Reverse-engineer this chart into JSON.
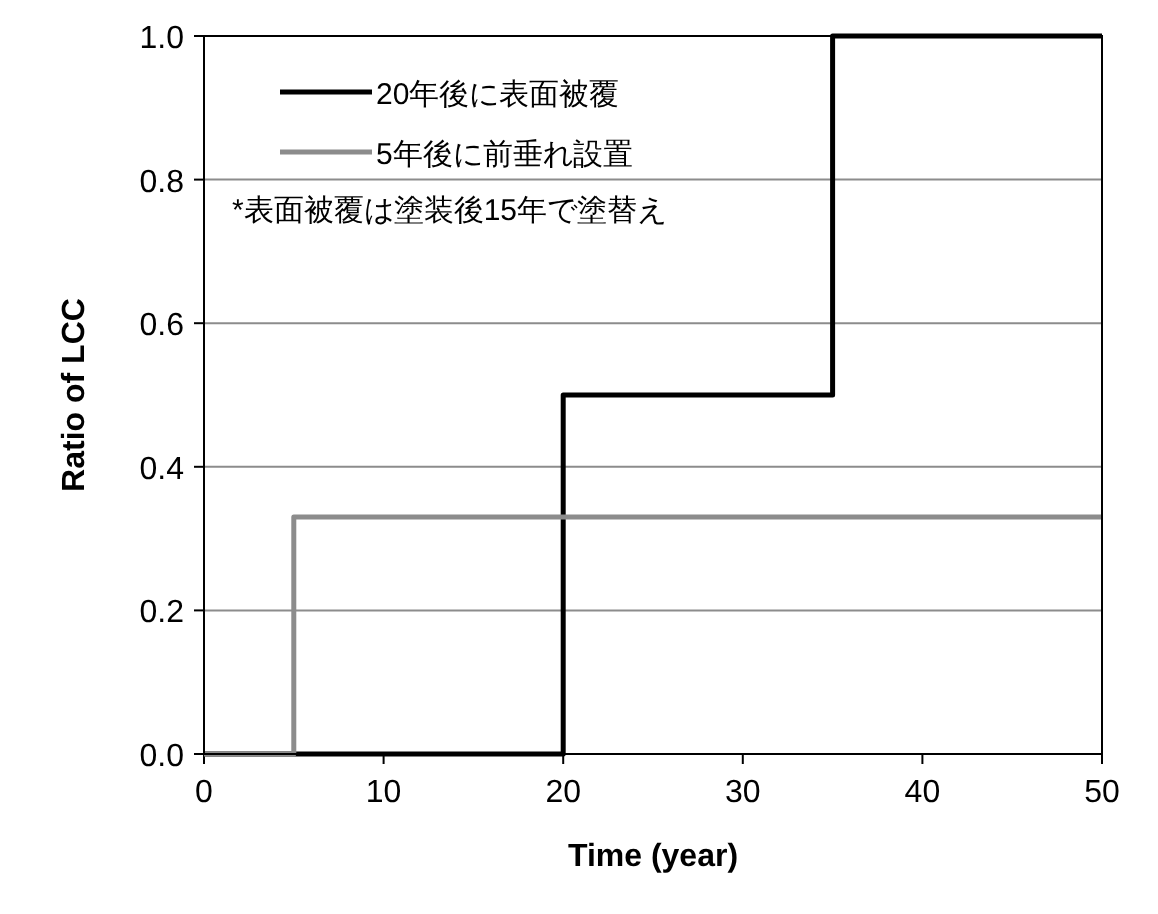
{
  "chart_data": {
    "type": "step",
    "xlabel": "Time (year)",
    "ylabel": "Ratio of LCC",
    "xlim": [
      0,
      50
    ],
    "ylim": [
      0,
      1
    ],
    "xticks": [
      0,
      10,
      20,
      30,
      40,
      50
    ],
    "yticks": [
      {
        "value": 0,
        "label": "0.0"
      },
      {
        "value": 0.2,
        "label": "0.2"
      },
      {
        "value": 0.4,
        "label": "0.4"
      },
      {
        "value": 0.6,
        "label": "0.6"
      },
      {
        "value": 0.8,
        "label": "0.8"
      },
      {
        "value": 1,
        "label": "1.0"
      }
    ],
    "grid": "y",
    "legend": "top left",
    "series": [
      {
        "name": "20年後に表面被覆",
        "color": "#000000",
        "x": [
          0,
          20,
          35,
          50
        ],
        "values": [
          0,
          0.5,
          1,
          1
        ]
      },
      {
        "name": "5年後に前垂れ設置",
        "color": "#8c8c8c",
        "x": [
          0,
          5,
          50
        ],
        "values": [
          0,
          0.33,
          0.33
        ]
      }
    ],
    "annotations": [
      "*表面被覆は塗装後15年で塗替え"
    ]
  }
}
